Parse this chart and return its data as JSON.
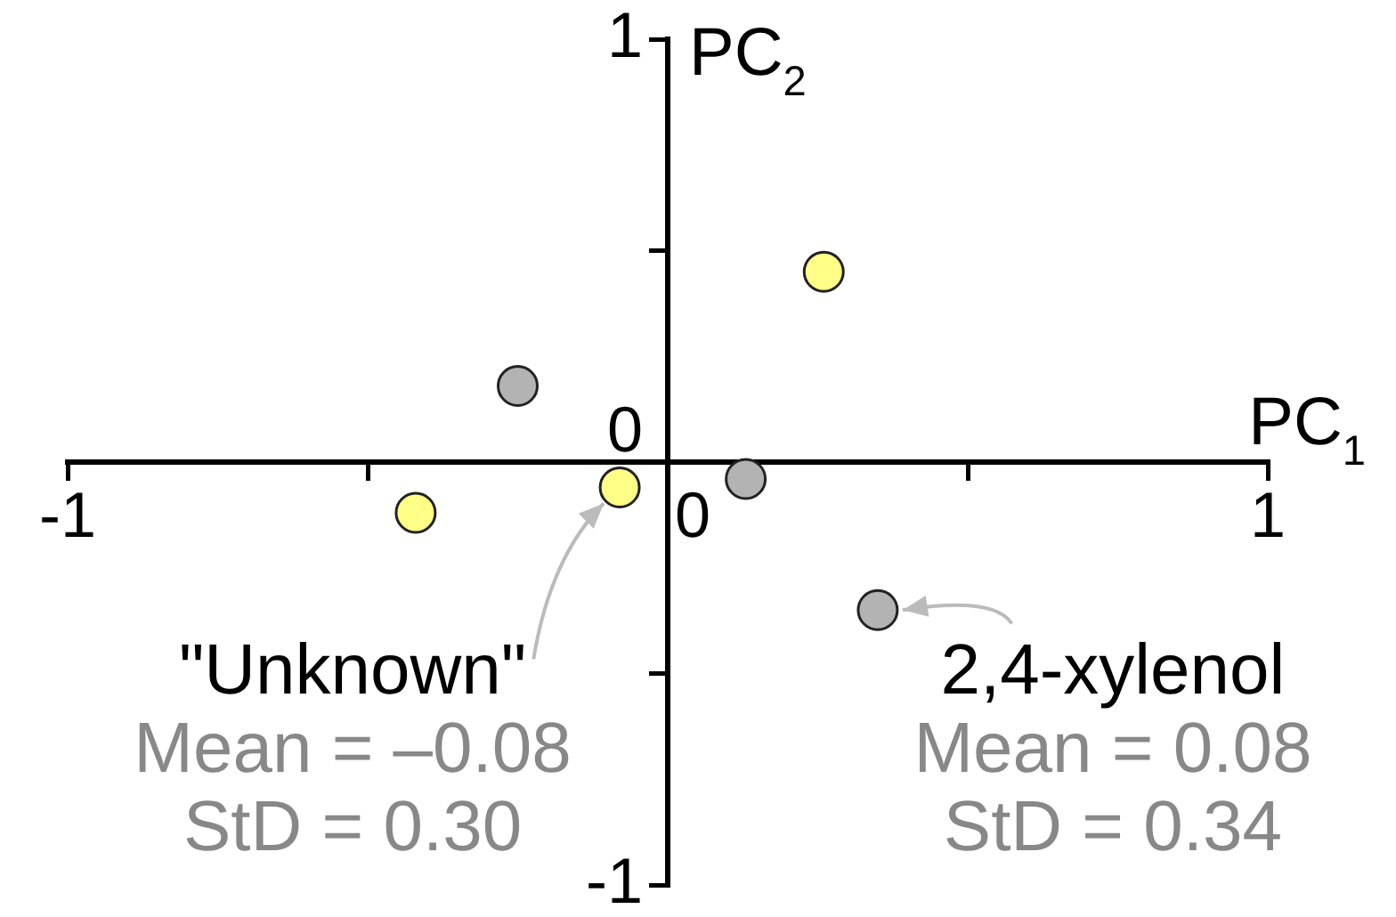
{
  "chart_data": {
    "type": "scatter",
    "xlabel": "PC$_{1}$",
    "ylabel": "PC$_{2}$",
    "xlim": [
      -1,
      1
    ],
    "ylim": [
      -1,
      1
    ],
    "xticks": [
      -1,
      {
        "value": -0.5,
        "label": null
      },
      0,
      {
        "value": 0.5,
        "label": null
      },
      1
    ],
    "yticks": [
      -1,
      {
        "value": -0.5,
        "label": null
      },
      0,
      {
        "value": 0.5,
        "label": null
      },
      1
    ],
    "grid": false,
    "legend": false,
    "marker": "circle",
    "series": [
      {
        "color": "#ffff88",
        "x": [
          0.26,
          -0.42,
          -0.08
        ],
        "values": [
          0.45,
          -0.12,
          -0.06
        ]
      },
      {
        "color": "#b3b3b3",
        "x": [
          -0.25,
          0.13,
          0.35
        ],
        "values": [
          0.18,
          -0.04,
          -0.35
        ]
      }
    ],
    "annotations": [
      {
        "text": "\"Unknown\"",
        "x": -0.08,
        "y": -0.06
      },
      "Mean = –0.08",
      "StD = 0.30",
      {
        "text": "2,4-xylenol",
        "x": 0.35,
        "y": -0.35
      },
      "Mean = 0.08",
      "StD = 0.34"
    ]
  }
}
